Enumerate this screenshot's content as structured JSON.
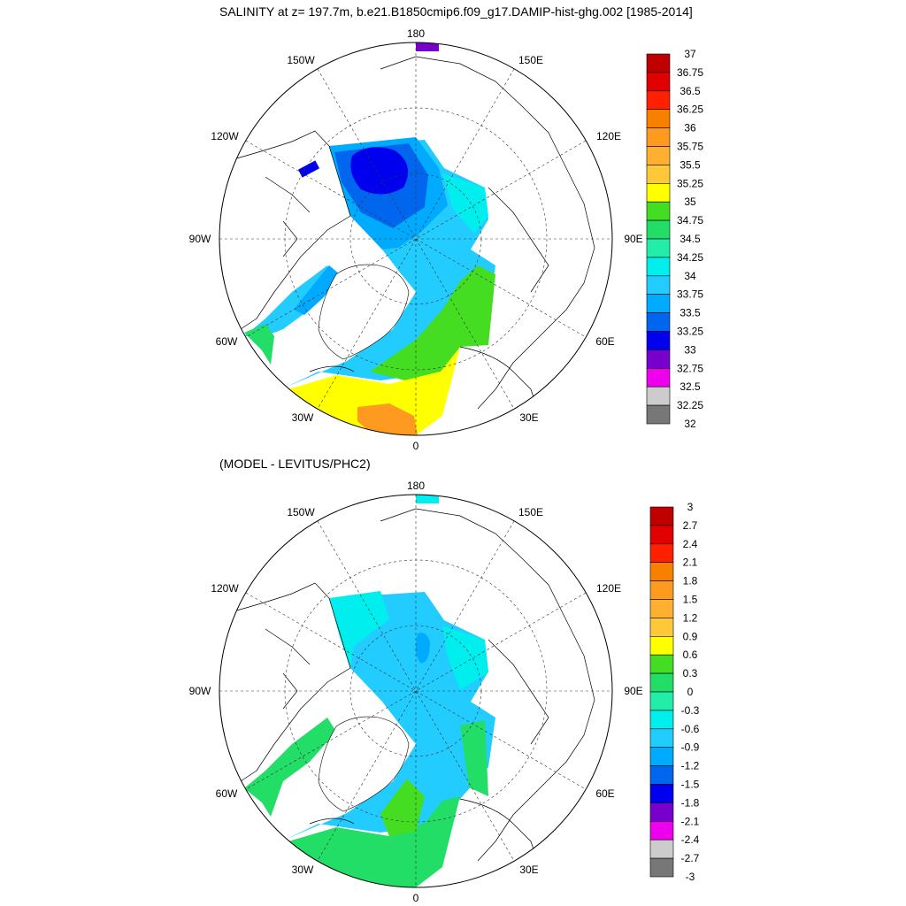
{
  "top_panel": {
    "title": "SALINITY at z= 197.7m, b.e21.B1850cmip6.f09_g17.DAMIP-hist-ghg.002 [1985-2014]",
    "lon_labels": [
      "180",
      "150E",
      "120E",
      "90E",
      "60E",
      "30E",
      "0",
      "30W",
      "60W",
      "90W",
      "120W",
      "150W"
    ],
    "colorbar_labels": [
      "37",
      "36.75",
      "36.5",
      "36.25",
      "36",
      "35.75",
      "35.5",
      "35.25",
      "35",
      "34.75",
      "34.5",
      "34.25",
      "34",
      "33.75",
      "33.5",
      "33.25",
      "33",
      "32.75",
      "32.5",
      "32.25",
      "32"
    ],
    "colorbar_colors": [
      "#C00000",
      "#E00000",
      "#FF2000",
      "#F88000",
      "#FF9A20",
      "#FFB030",
      "#FFC838",
      "#FFFF00",
      "#44DD22",
      "#22DD66",
      "#22EEAA",
      "#00EEEE",
      "#22CCFF",
      "#00AAFF",
      "#0066EE",
      "#0000EE",
      "#7700CC",
      "#EE00EE",
      "#CCCCCC",
      "#777777"
    ]
  },
  "bottom_panel": {
    "title": "(MODEL - LEVITUS/PHC2)",
    "lon_labels": [
      "180",
      "150E",
      "120E",
      "90E",
      "60E",
      "30E",
      "0",
      "30W",
      "60W",
      "90W",
      "120W",
      "150W"
    ],
    "colorbar_labels": [
      "3",
      "2.7",
      "2.4",
      "2.1",
      "1.8",
      "1.5",
      "1.2",
      "0.9",
      "0.6",
      "0.3",
      "0",
      "-0.3",
      "-0.6",
      "-0.9",
      "-1.2",
      "-1.5",
      "-1.8",
      "-2.1",
      "-2.4",
      "-2.7",
      "-3"
    ],
    "colorbar_colors": [
      "#C00000",
      "#E00000",
      "#FF2000",
      "#F88000",
      "#FF9A20",
      "#FFB030",
      "#FFC838",
      "#FFFF00",
      "#44DD22",
      "#22DD66",
      "#22EEAA",
      "#00EEEE",
      "#22CCFF",
      "#00AAFF",
      "#0066EE",
      "#0000EE",
      "#7700CC",
      "#EE00EE",
      "#CCCCCC",
      "#777777"
    ]
  }
}
